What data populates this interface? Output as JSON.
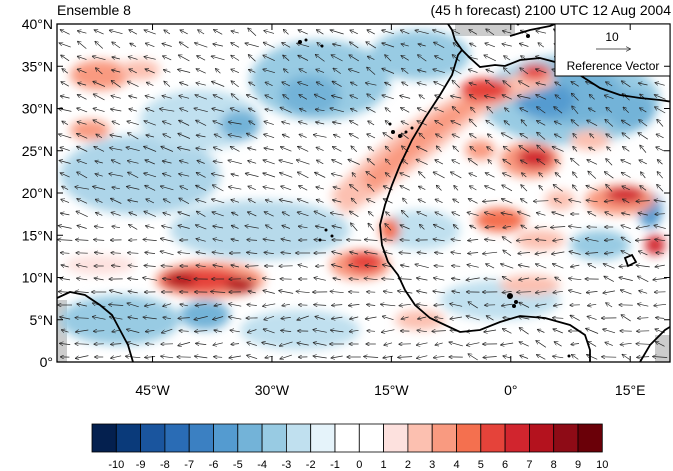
{
  "header": {
    "left": "Ensemble 8",
    "right": "(45 h forecast) 2100 UTC 12 Aug 2004"
  },
  "map": {
    "projection": "cylindrical-equidistant",
    "lon_range": [
      -57,
      20
    ],
    "lat_range": [
      0,
      40
    ],
    "lat_ticks": [
      "0°",
      "5°N",
      "10°N",
      "15°N",
      "20°N",
      "25°N",
      "30°N",
      "35°N",
      "40°N"
    ],
    "lon_ticks": [
      "45°W",
      "30°W",
      "15°W",
      "0°",
      "15°E"
    ],
    "reference_vector": {
      "value": "10",
      "label": "Reference Vector"
    },
    "shaded_field": "anomaly (blue negative, red positive)",
    "positive_features": [
      {
        "name": "african-coast-band",
        "lon": -12,
        "lat": 28
      },
      {
        "name": "atlantic-10N-max",
        "lon": -42,
        "lat": 10.5
      },
      {
        "name": "coastal-12N-max",
        "lon": -20,
        "lat": 12
      },
      {
        "name": "sahara-25N-max",
        "lon": 2,
        "lat": 25
      },
      {
        "name": "east-20N-max",
        "lon": 13,
        "lat": 20
      }
    ],
    "negative_features": [
      {
        "name": "mediterranean-min",
        "lon": 2,
        "lat": 34
      },
      {
        "name": "mid-atlantic-min",
        "lon": -26,
        "lat": 35
      },
      {
        "name": "tropical-atlantic-min",
        "lon": -45,
        "lat": 5
      }
    ]
  },
  "colorbar": {
    "labels": [
      "-10",
      "-9",
      "-8",
      "-7",
      "-6",
      "-5",
      "-4",
      "-3",
      "-2",
      "-1",
      "0",
      "1",
      "2",
      "3",
      "4",
      "5",
      "6",
      "7",
      "8",
      "9",
      "10"
    ],
    "colors": [
      "#04204f",
      "#0a3a7a",
      "#1a559e",
      "#2a6cb5",
      "#3b80c2",
      "#549bd0",
      "#73b3d8",
      "#98cbe3",
      "#c0e0ef",
      "#e5f3fa",
      "#ffffff",
      "#ffffff",
      "#fde1de",
      "#fcc0b0",
      "#f99a80",
      "#f4704f",
      "#e5433a",
      "#d1252e",
      "#b4121e",
      "#8e0b16",
      "#6a0008"
    ]
  }
}
